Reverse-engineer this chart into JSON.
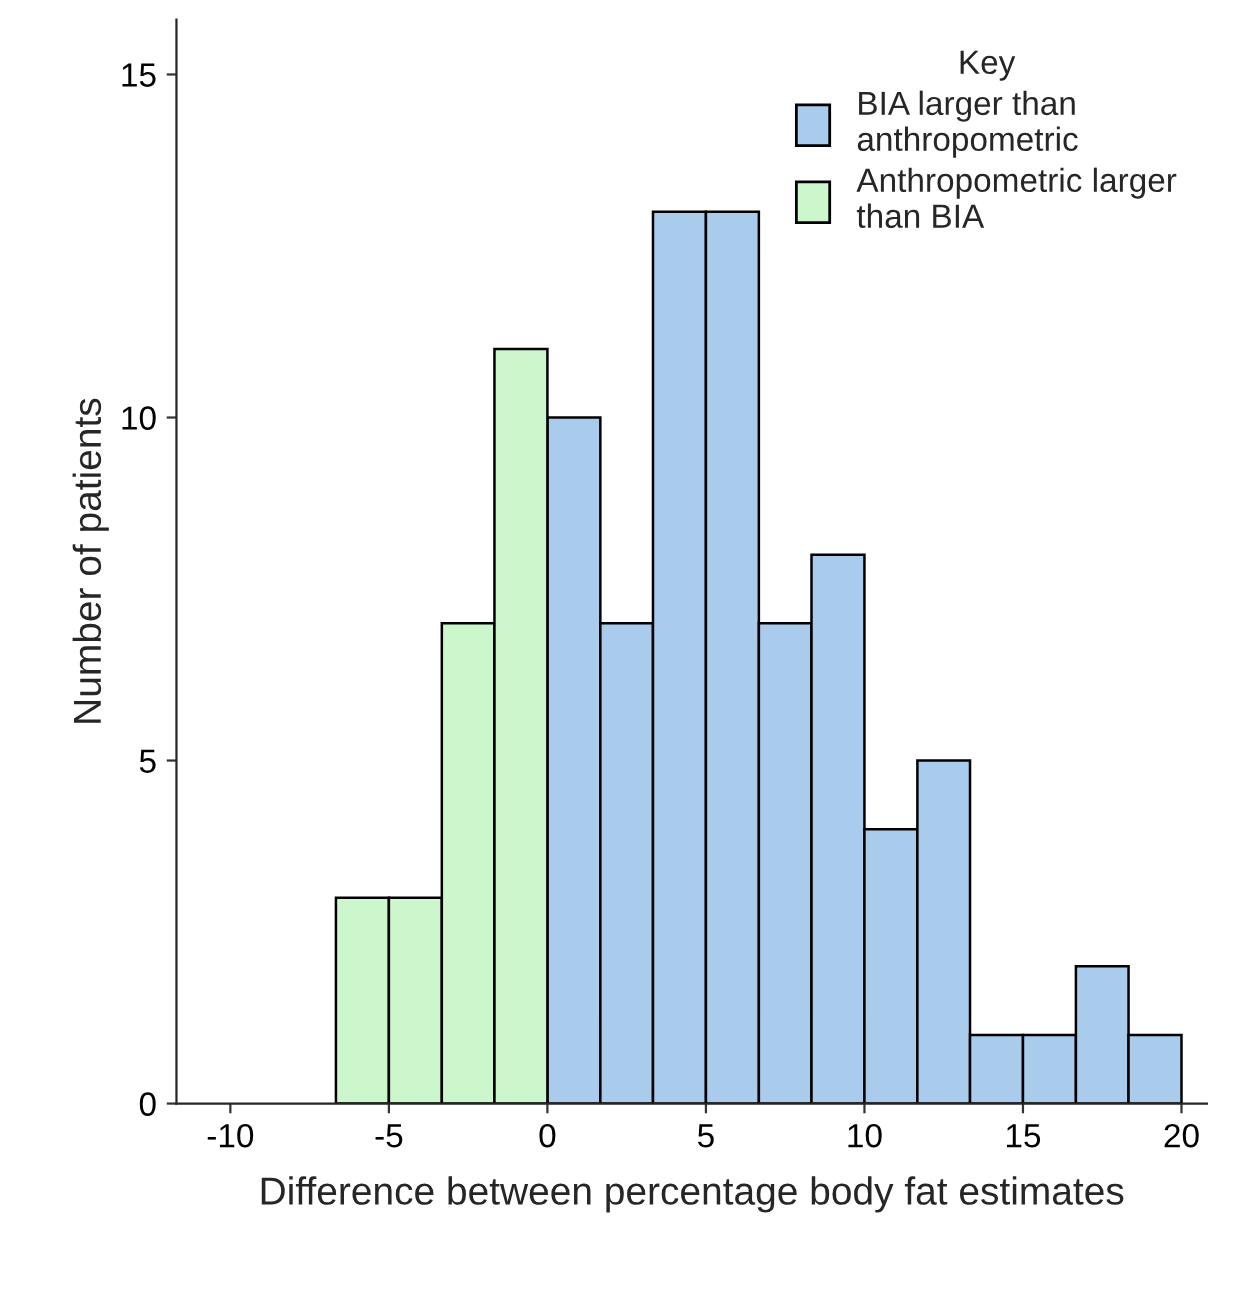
{
  "chart_data": {
    "type": "histogram",
    "xlabel": "Difference between percentage body fat estimates",
    "ylabel": "Number of patients",
    "legend_title": "Key",
    "legend": "top right",
    "grid": false,
    "bins": [
      -6.67,
      -5,
      -3.33,
      -1.67,
      0,
      1.67,
      3.33,
      5,
      6.67,
      8.33,
      10,
      11.67,
      13.33,
      15,
      16.67,
      18.33,
      20
    ],
    "series": [
      {
        "name": "BIA larger than\nanthropometric",
        "color": "#a9cbec",
        "values": [
          null,
          null,
          null,
          null,
          10,
          7,
          13,
          13,
          7,
          8,
          4,
          5,
          1,
          1,
          2,
          1
        ]
      },
      {
        "name": "Anthropometric larger\nthan BIA",
        "color": "#ccf7cc",
        "values": [
          3,
          3,
          7,
          11,
          null,
          null,
          null,
          null,
          null,
          null,
          null,
          null,
          null,
          null,
          null,
          null
        ]
      }
    ],
    "xlim": [
      -11.7,
      20.8
    ],
    "xticks": [
      -10,
      -5,
      0,
      5,
      10,
      15,
      20
    ],
    "ylim": [
      0,
      15.8
    ],
    "yticks": [
      0,
      5,
      10,
      15
    ]
  }
}
